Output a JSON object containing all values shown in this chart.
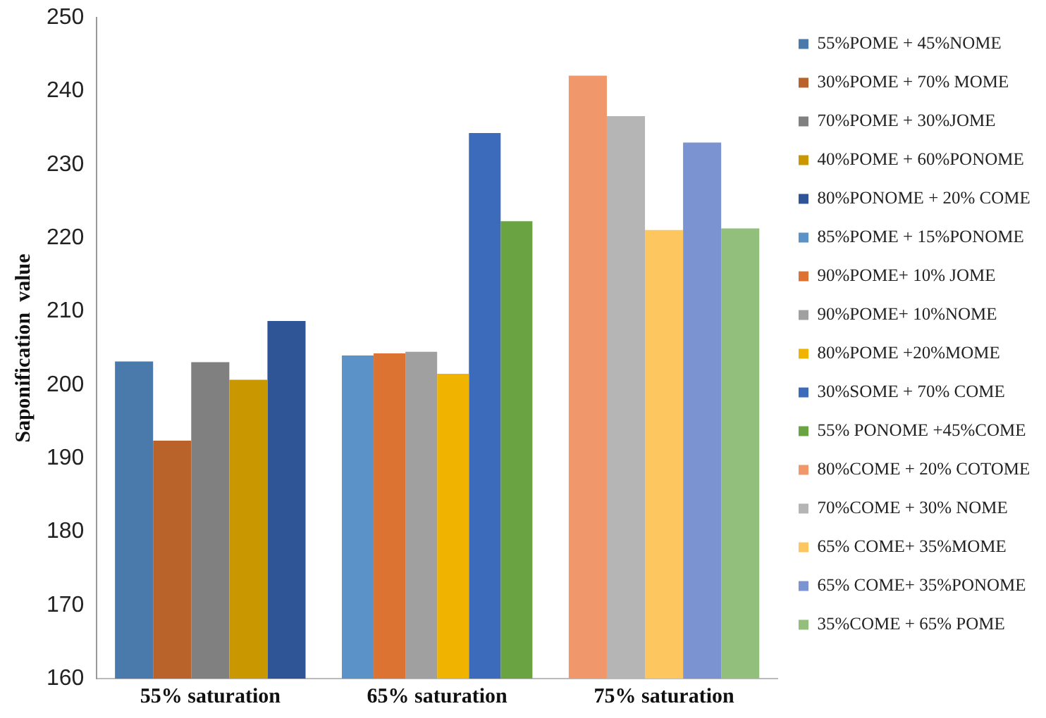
{
  "chart_data": {
    "type": "bar",
    "ylabel": "Saponification  value",
    "categories": [
      "55% saturation",
      "65% saturation",
      "75% saturation"
    ],
    "ylim": [
      160,
      250
    ],
    "yticks": [
      160,
      170,
      180,
      190,
      200,
      210,
      220,
      230,
      240,
      250
    ],
    "grid": false,
    "legend": "right",
    "series": [
      {
        "name": "55%POME + 45%NOME",
        "color": "#4a7aab",
        "values": [
          203.2,
          null,
          null
        ]
      },
      {
        "name": "30%POME + 70% MOME",
        "color": "#b9622a",
        "values": [
          192.4,
          null,
          null
        ]
      },
      {
        "name": "70%POME + 30%JOME",
        "color": "#808080",
        "values": [
          203.1,
          null,
          null
        ]
      },
      {
        "name": "40%POME + 60%PONOME",
        "color": "#c99700",
        "values": [
          200.7,
          null,
          null
        ]
      },
      {
        "name": "80%PONOME + 20% COME",
        "color": "#2f5597",
        "values": [
          208.7,
          null,
          null
        ]
      },
      {
        "name": "85%POME + 15%PONOME",
        "color": "#5b93c9",
        "values": [
          null,
          204,
          null
        ]
      },
      {
        "name": "90%POME+ 10% JOME",
        "color": "#dd7333",
        "values": [
          null,
          204.3,
          null
        ]
      },
      {
        "name": "90%POME+ 10%NOME",
        "color": "#a0a0a0",
        "values": [
          null,
          204.5,
          null
        ]
      },
      {
        "name": "80%POME +20%MOME",
        "color": "#f0b400",
        "values": [
          null,
          201.5,
          null
        ]
      },
      {
        "name": "30%SOME + 70% COME",
        "color": "#3d6bbb",
        "values": [
          null,
          234.3,
          null
        ]
      },
      {
        "name": "55% PONOME +45%COME",
        "color": "#6aa442",
        "values": [
          null,
          222.3,
          null
        ]
      },
      {
        "name": "80%COME + 20% COTOME",
        "color": "#f0976b",
        "values": [
          null,
          null,
          242.1
        ]
      },
      {
        "name": "70%COME + 30% NOME",
        "color": "#b5b5b5",
        "values": [
          null,
          null,
          236.6
        ]
      },
      {
        "name": "65% COME+ 35%MOME",
        "color": "#fdc65e",
        "values": [
          null,
          null,
          221.1
        ]
      },
      {
        "name": "65% COME+ 35%PONOME",
        "color": "#7b93d0",
        "values": [
          null,
          null,
          233
        ]
      },
      {
        "name": "35%COME + 65% POME",
        "color": "#92c07c",
        "values": [
          null,
          null,
          221.3
        ]
      }
    ]
  }
}
